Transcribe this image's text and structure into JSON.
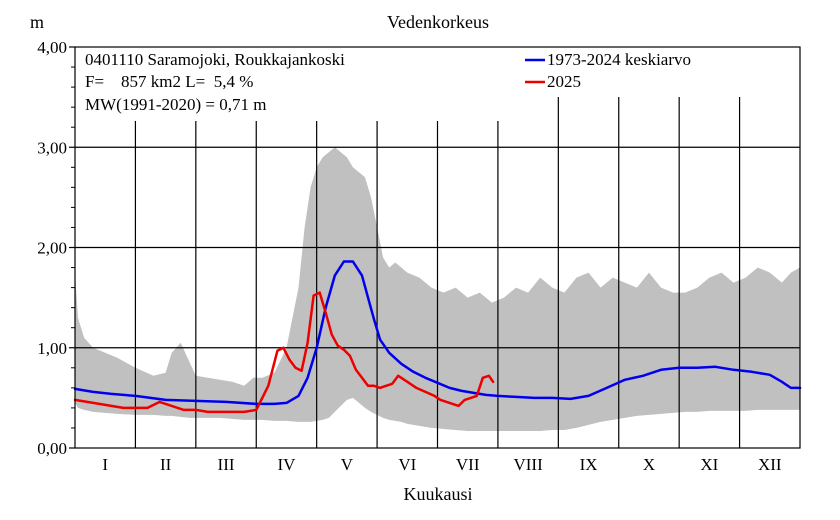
{
  "chart_data": {
    "type": "line",
    "title": "Vedenkorkeus",
    "ylabel": "m",
    "xlabel": "Kuukausi",
    "ylim": [
      0,
      4
    ],
    "xlim": [
      0,
      12
    ],
    "y_ticks": [
      "0,00",
      "1,00",
      "2,00",
      "3,00",
      "4,00"
    ],
    "categories": [
      "I",
      "II",
      "III",
      "IV",
      "V",
      "VI",
      "VII",
      "VIII",
      "IX",
      "X",
      "XI",
      "XII"
    ],
    "grid": true,
    "legend_position": "top-right",
    "info_lines": [
      "0401110 Saramojoki, Roukkajankoski",
      "F=    857 km2 L=  5,4 %",
      "MW(1991-2020) = 0,71 m"
    ],
    "colors": {
      "mean": "#0000ee",
      "year": "#ee0000",
      "range": "#c0c0c0"
    },
    "range_band": {
      "x": [
        0,
        0.05,
        0.15,
        0.3,
        0.5,
        0.7,
        1.0,
        1.3,
        1.5,
        1.6,
        1.75,
        1.9,
        2.0,
        2.2,
        2.4,
        2.6,
        2.8,
        2.95,
        3.1,
        3.3,
        3.5,
        3.7,
        3.8,
        3.9,
        4.0,
        4.1,
        4.2,
        4.3,
        4.4,
        4.5,
        4.6,
        4.7,
        4.8,
        4.9,
        5.0,
        5.1,
        5.2,
        5.3,
        5.4,
        5.5,
        5.7,
        5.9,
        6.1,
        6.3,
        6.5,
        6.7,
        6.9,
        7.1,
        7.3,
        7.5,
        7.7,
        7.9,
        8.1,
        8.3,
        8.5,
        8.7,
        8.9,
        9.1,
        9.3,
        9.5,
        9.7,
        9.9,
        10.1,
        10.3,
        10.5,
        10.7,
        10.9,
        11.1,
        11.3,
        11.5,
        11.7,
        11.85,
        12.0
      ],
      "high": [
        1.75,
        1.3,
        1.1,
        1.0,
        0.95,
        0.9,
        0.8,
        0.72,
        0.75,
        0.95,
        1.05,
        0.85,
        0.72,
        0.7,
        0.68,
        0.66,
        0.62,
        0.7,
        0.7,
        0.75,
        1.0,
        1.6,
        2.2,
        2.6,
        2.8,
        2.9,
        2.95,
        3.0,
        2.95,
        2.9,
        2.8,
        2.75,
        2.7,
        2.5,
        2.2,
        1.9,
        1.8,
        1.85,
        1.8,
        1.75,
        1.7,
        1.6,
        1.55,
        1.6,
        1.5,
        1.55,
        1.45,
        1.5,
        1.6,
        1.55,
        1.7,
        1.6,
        1.55,
        1.7,
        1.75,
        1.6,
        1.7,
        1.65,
        1.6,
        1.75,
        1.6,
        1.55,
        1.55,
        1.6,
        1.7,
        1.75,
        1.65,
        1.7,
        1.8,
        1.75,
        1.65,
        1.75,
        1.8
      ],
      "low": [
        0.45,
        0.4,
        0.38,
        0.36,
        0.35,
        0.34,
        0.33,
        0.33,
        0.32,
        0.32,
        0.31,
        0.3,
        0.3,
        0.3,
        0.3,
        0.29,
        0.28,
        0.28,
        0.28,
        0.27,
        0.27,
        0.26,
        0.26,
        0.26,
        0.27,
        0.28,
        0.3,
        0.36,
        0.42,
        0.48,
        0.5,
        0.45,
        0.4,
        0.36,
        0.33,
        0.3,
        0.28,
        0.27,
        0.26,
        0.24,
        0.22,
        0.2,
        0.19,
        0.18,
        0.17,
        0.17,
        0.17,
        0.17,
        0.17,
        0.17,
        0.17,
        0.18,
        0.18,
        0.2,
        0.23,
        0.26,
        0.28,
        0.3,
        0.32,
        0.33,
        0.34,
        0.35,
        0.36,
        0.36,
        0.37,
        0.37,
        0.37,
        0.37,
        0.38,
        0.38,
        0.38,
        0.38,
        0.38
      ]
    },
    "series": [
      {
        "name": "1973-2024 keskiarvo",
        "x": [
          0,
          0.3,
          0.6,
          1.0,
          1.5,
          2.0,
          2.5,
          3.0,
          3.3,
          3.5,
          3.7,
          3.85,
          4.0,
          4.15,
          4.3,
          4.45,
          4.6,
          4.75,
          4.85,
          4.95,
          5.05,
          5.2,
          5.4,
          5.6,
          5.8,
          6.0,
          6.2,
          6.4,
          6.6,
          6.8,
          7.0,
          7.3,
          7.6,
          7.9,
          8.2,
          8.5,
          8.8,
          9.1,
          9.4,
          9.7,
          10.0,
          10.3,
          10.6,
          10.9,
          11.2,
          11.5,
          11.7,
          11.85,
          12.0
        ],
        "values": [
          0.59,
          0.56,
          0.54,
          0.52,
          0.48,
          0.47,
          0.46,
          0.44,
          0.44,
          0.45,
          0.52,
          0.7,
          1.0,
          1.4,
          1.72,
          1.86,
          1.86,
          1.72,
          1.5,
          1.28,
          1.08,
          0.95,
          0.84,
          0.76,
          0.7,
          0.65,
          0.6,
          0.57,
          0.55,
          0.53,
          0.52,
          0.51,
          0.5,
          0.5,
          0.49,
          0.52,
          0.6,
          0.68,
          0.72,
          0.78,
          0.8,
          0.8,
          0.81,
          0.78,
          0.76,
          0.73,
          0.66,
          0.6,
          0.6
        ]
      },
      {
        "name": "2025",
        "x": [
          0,
          0.2,
          0.4,
          0.6,
          0.8,
          1.0,
          1.2,
          1.4,
          1.6,
          1.8,
          2.0,
          2.2,
          2.4,
          2.6,
          2.8,
          3.0,
          3.2,
          3.35,
          3.45,
          3.55,
          3.65,
          3.75,
          3.85,
          3.95,
          4.05,
          4.15,
          4.25,
          4.35,
          4.45,
          4.55,
          4.65,
          4.75,
          4.85,
          4.95,
          5.05,
          5.15,
          5.25,
          5.35,
          5.5,
          5.65,
          5.8,
          5.95,
          6.05,
          6.15,
          6.25,
          6.35,
          6.45,
          6.55,
          6.65,
          6.75,
          6.85,
          6.92
        ],
        "values": [
          0.48,
          0.46,
          0.44,
          0.42,
          0.4,
          0.4,
          0.4,
          0.46,
          0.42,
          0.38,
          0.38,
          0.36,
          0.36,
          0.36,
          0.36,
          0.38,
          0.62,
          0.97,
          1.0,
          0.88,
          0.8,
          0.77,
          1.05,
          1.52,
          1.55,
          1.35,
          1.13,
          1.02,
          0.98,
          0.92,
          0.78,
          0.7,
          0.62,
          0.62,
          0.6,
          0.62,
          0.64,
          0.72,
          0.66,
          0.6,
          0.56,
          0.52,
          0.48,
          0.46,
          0.44,
          0.42,
          0.48,
          0.5,
          0.52,
          0.7,
          0.72,
          0.66
        ]
      }
    ]
  }
}
